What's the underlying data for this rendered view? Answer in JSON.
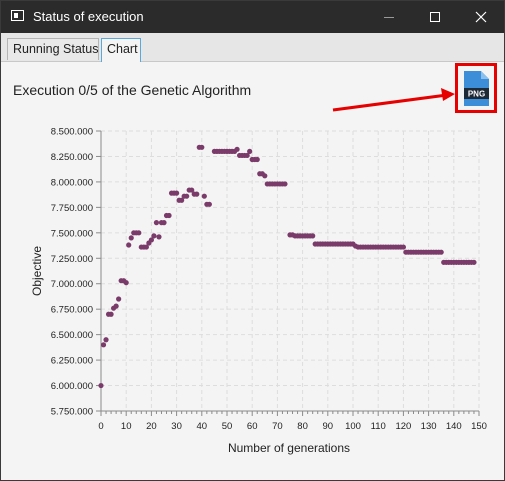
{
  "window": {
    "title": "Status of execution",
    "controls": [
      "minimize",
      "maximize",
      "close"
    ]
  },
  "tabs": [
    {
      "label": "Running Status",
      "selected": false
    },
    {
      "label": "Chart",
      "selected": true
    }
  ],
  "content": {
    "execution_label": "Execution 0/5 of the Genetic Algorithm",
    "export_icon": "png-file-icon",
    "export_icon_text": "PNG",
    "annotation_color": "#e60000"
  },
  "colors": {
    "point": "#7b3b6a",
    "titlebar": "#2b2b2b",
    "tab_selected_border": "#5aa9d6"
  },
  "chart_data": {
    "type": "scatter",
    "xlabel": "Number of generations",
    "ylabel": "Objective",
    "xlim": [
      0,
      150
    ],
    "ylim": [
      5750000,
      8500000
    ],
    "x_ticks": [
      "0",
      "10",
      "20",
      "30",
      "40",
      "50",
      "60",
      "70",
      "80",
      "90",
      "100",
      "110",
      "120",
      "130",
      "140",
      "150"
    ],
    "y_ticks": [
      "5.750.000",
      "6.000.000",
      "6.250.000",
      "6.500.000",
      "6.750.000",
      "7.000.000",
      "7.250.000",
      "7.500.000",
      "7.750.000",
      "8.000.000",
      "8.250.000",
      "8.500.000"
    ],
    "grid": true,
    "legend": "none",
    "points": [
      [
        0,
        6000000
      ],
      [
        1,
        6400000
      ],
      [
        2,
        6450000
      ],
      [
        3,
        6700000
      ],
      [
        4,
        6700000
      ],
      [
        5,
        6760000
      ],
      [
        6,
        6780000
      ],
      [
        7,
        6850000
      ],
      [
        8,
        7030000
      ],
      [
        9,
        7030000
      ],
      [
        10,
        7010000
      ],
      [
        11,
        7380000
      ],
      [
        12,
        7450000
      ],
      [
        13,
        7500000
      ],
      [
        14,
        7500000
      ],
      [
        15,
        7500000
      ],
      [
        16,
        7360000
      ],
      [
        17,
        7360000
      ],
      [
        18,
        7360000
      ],
      [
        19,
        7400000
      ],
      [
        20,
        7430000
      ],
      [
        21,
        7470000
      ],
      [
        22,
        7600000
      ],
      [
        23,
        7460000
      ],
      [
        24,
        7600000
      ],
      [
        25,
        7600000
      ],
      [
        26,
        7670000
      ],
      [
        27,
        7670000
      ],
      [
        28,
        7890000
      ],
      [
        29,
        7890000
      ],
      [
        30,
        7890000
      ],
      [
        31,
        7820000
      ],
      [
        32,
        7820000
      ],
      [
        33,
        7860000
      ],
      [
        34,
        7860000
      ],
      [
        35,
        7920000
      ],
      [
        36,
        7920000
      ],
      [
        37,
        7880000
      ],
      [
        38,
        7880000
      ],
      [
        39,
        8340000
      ],
      [
        40,
        8340000
      ],
      [
        41,
        7860000
      ],
      [
        42,
        7780000
      ],
      [
        43,
        7780000
      ],
      [
        45,
        8300000
      ],
      [
        46,
        8300000
      ],
      [
        47,
        8300000
      ],
      [
        48,
        8300000
      ],
      [
        49,
        8300000
      ],
      [
        50,
        8300000
      ],
      [
        51,
        8300000
      ],
      [
        52,
        8300000
      ],
      [
        53,
        8300000
      ],
      [
        54,
        8320000
      ],
      [
        55,
        8260000
      ],
      [
        56,
        8260000
      ],
      [
        57,
        8260000
      ],
      [
        58,
        8260000
      ],
      [
        59,
        8300000
      ],
      [
        60,
        8220000
      ],
      [
        61,
        8220000
      ],
      [
        62,
        8220000
      ],
      [
        63,
        8080000
      ],
      [
        64,
        8080000
      ],
      [
        65,
        8060000
      ],
      [
        66,
        7980000
      ],
      [
        67,
        7980000
      ],
      [
        68,
        7980000
      ],
      [
        69,
        7980000
      ],
      [
        70,
        7980000
      ],
      [
        71,
        7980000
      ],
      [
        72,
        7980000
      ],
      [
        73,
        7980000
      ],
      [
        75,
        7480000
      ],
      [
        76,
        7480000
      ],
      [
        77,
        7470000
      ],
      [
        78,
        7470000
      ],
      [
        79,
        7470000
      ],
      [
        80,
        7470000
      ],
      [
        81,
        7470000
      ],
      [
        82,
        7470000
      ],
      [
        83,
        7470000
      ],
      [
        84,
        7470000
      ],
      [
        85,
        7390000
      ],
      [
        86,
        7390000
      ],
      [
        87,
        7390000
      ],
      [
        88,
        7390000
      ],
      [
        89,
        7390000
      ],
      [
        90,
        7390000
      ],
      [
        91,
        7390000
      ],
      [
        92,
        7390000
      ],
      [
        93,
        7390000
      ],
      [
        94,
        7390000
      ],
      [
        95,
        7390000
      ],
      [
        96,
        7390000
      ],
      [
        97,
        7390000
      ],
      [
        98,
        7390000
      ],
      [
        99,
        7390000
      ],
      [
        100,
        7390000
      ],
      [
        101,
        7370000
      ],
      [
        102,
        7360000
      ],
      [
        103,
        7360000
      ],
      [
        104,
        7360000
      ],
      [
        105,
        7360000
      ],
      [
        106,
        7360000
      ],
      [
        107,
        7360000
      ],
      [
        108,
        7360000
      ],
      [
        109,
        7360000
      ],
      [
        110,
        7360000
      ],
      [
        111,
        7360000
      ],
      [
        112,
        7360000
      ],
      [
        113,
        7360000
      ],
      [
        114,
        7360000
      ],
      [
        115,
        7360000
      ],
      [
        116,
        7360000
      ],
      [
        117,
        7360000
      ],
      [
        118,
        7360000
      ],
      [
        119,
        7360000
      ],
      [
        120,
        7360000
      ],
      [
        121,
        7310000
      ],
      [
        122,
        7310000
      ],
      [
        123,
        7310000
      ],
      [
        124,
        7310000
      ],
      [
        125,
        7310000
      ],
      [
        126,
        7310000
      ],
      [
        127,
        7310000
      ],
      [
        128,
        7310000
      ],
      [
        129,
        7310000
      ],
      [
        130,
        7310000
      ],
      [
        131,
        7310000
      ],
      [
        132,
        7310000
      ],
      [
        133,
        7310000
      ],
      [
        134,
        7310000
      ],
      [
        135,
        7310000
      ],
      [
        136,
        7210000
      ],
      [
        137,
        7210000
      ],
      [
        138,
        7210000
      ],
      [
        139,
        7210000
      ],
      [
        140,
        7210000
      ],
      [
        141,
        7210000
      ],
      [
        142,
        7210000
      ],
      [
        143,
        7210000
      ],
      [
        144,
        7210000
      ],
      [
        145,
        7210000
      ],
      [
        146,
        7210000
      ],
      [
        147,
        7210000
      ],
      [
        148,
        7210000
      ]
    ]
  }
}
